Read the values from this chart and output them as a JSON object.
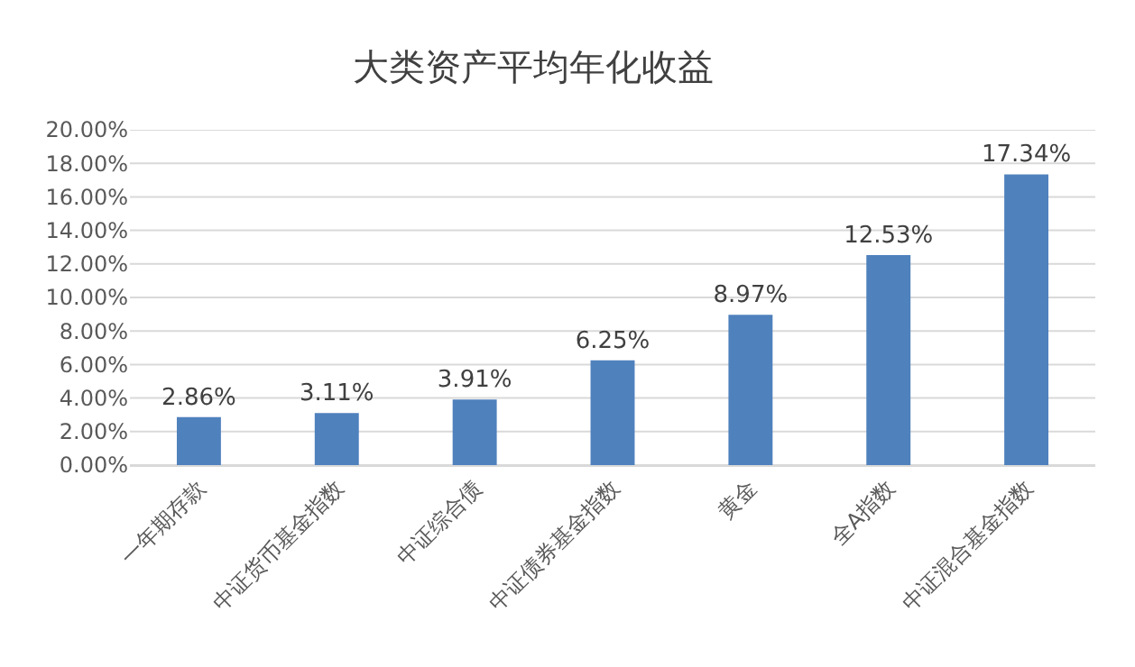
{
  "chart_data": {
    "type": "bar",
    "title": "大类资产平均年化收益",
    "categories": [
      "一年期存款",
      "中证货币基金指数",
      "中证综合债",
      "中证债券基金指数",
      "黄金",
      "全A指数",
      "中证混合基金指数"
    ],
    "values": [
      2.86,
      3.11,
      3.91,
      6.25,
      8.97,
      12.53,
      17.34
    ],
    "value_labels": [
      "2.86%",
      "3.11%",
      "3.91%",
      "6.25%",
      "8.97%",
      "12.53%",
      "17.34%"
    ],
    "color": "#4f81bd",
    "ylim": [
      0,
      20
    ],
    "yticks": [
      {
        "value": 0,
        "label": "0.00%"
      },
      {
        "value": 2,
        "label": "2.00%"
      },
      {
        "value": 4,
        "label": "4.00%"
      },
      {
        "value": 6,
        "label": "6.00%"
      },
      {
        "value": 8,
        "label": "8.00%"
      },
      {
        "value": 10,
        "label": "10.00%"
      },
      {
        "value": 12,
        "label": "12.00%"
      },
      {
        "value": 14,
        "label": "14.00%"
      },
      {
        "value": 16,
        "label": "16.00%"
      },
      {
        "value": 18,
        "label": "18.00%"
      },
      {
        "value": 20,
        "label": "20.00%"
      }
    ],
    "grid": "y"
  }
}
